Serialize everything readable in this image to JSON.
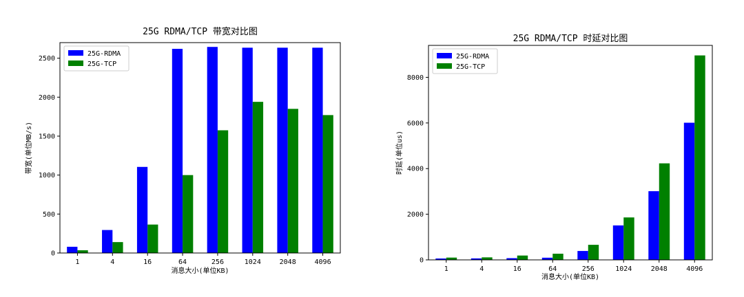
{
  "chart_data": [
    {
      "type": "bar",
      "title": "25G RDMA/TCP 带宽对比图",
      "xlabel": "消息大小(单位KB)",
      "ylabel": "带宽(单位MB/s)",
      "categories": [
        "1",
        "4",
        "16",
        "64",
        "256",
        "1024",
        "2048",
        "4096"
      ],
      "series": [
        {
          "name": "25G-RDMA",
          "color": "#0000ff",
          "values": [
            80,
            295,
            1105,
            2620,
            2645,
            2635,
            2635,
            2635
          ]
        },
        {
          "name": "25G-TCP",
          "color": "#008000",
          "values": [
            35,
            140,
            365,
            1000,
            1575,
            1940,
            1850,
            1770
          ]
        }
      ],
      "ylim": [
        0,
        2700
      ],
      "yticks": [
        0,
        500,
        1000,
        1500,
        2000,
        2500
      ],
      "grid": false,
      "legend": "top-left"
    },
    {
      "type": "bar",
      "title": "25G RDMA/TCP 时延对比图",
      "xlabel": "消息大小(单位KB)",
      "ylabel": "时延(单位us)",
      "categories": [
        "1",
        "4",
        "16",
        "64",
        "256",
        "1024",
        "2048",
        "4096"
      ],
      "series": [
        {
          "name": "25G-RDMA",
          "color": "#0000ff",
          "values": [
            60,
            65,
            75,
            95,
            390,
            1510,
            3010,
            6010
          ]
        },
        {
          "name": "25G-TCP",
          "color": "#008000",
          "values": [
            100,
            110,
            190,
            270,
            660,
            1860,
            4230,
            8960
          ]
        }
      ],
      "ylim": [
        0,
        9400
      ],
      "yticks": [
        0,
        2000,
        4000,
        6000,
        8000
      ],
      "grid": false,
      "legend": "top-left"
    }
  ]
}
